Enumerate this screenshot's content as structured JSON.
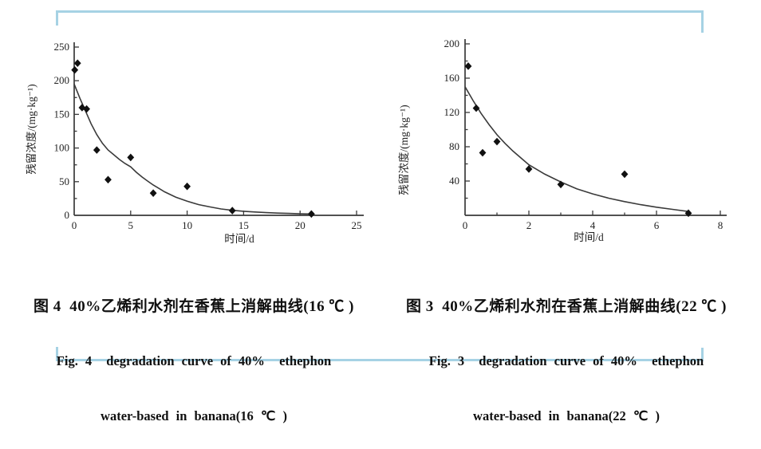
{
  "page": {
    "background": "#ffffff",
    "frame_color": "#a6d2e4",
    "ink_color": "#3a3a3a",
    "point_color": "#111111"
  },
  "chart_data": [
    {
      "figure_id": "figure-4",
      "type": "scatter",
      "title": "图 4  40%乙烯利水剂在香蕉上消解曲线(16 ℃ )",
      "caption_zh": "图 4  40%乙烯利水剂在香蕉上消解曲线(16 ℃ )",
      "caption_en1": "Fig. 4  degradation curve of 40%  ethephon",
      "caption_en2": "water-based in banana(16 ℃ )",
      "xlabel": "时间/d",
      "ylabel": "残留浓度/(mg·kg⁻¹)",
      "xlim": [
        0,
        25
      ],
      "ylim": [
        0,
        250
      ],
      "x_ticks": [
        0,
        5,
        10,
        15,
        20,
        25
      ],
      "y_ticks": [
        0,
        50,
        100,
        150,
        200,
        250
      ],
      "y_minor_step": 25,
      "x_minor_step": null,
      "grid": false,
      "legend": "none",
      "points": [
        [
          0.05,
          216
        ],
        [
          0.3,
          226
        ],
        [
          0.7,
          160
        ],
        [
          1.1,
          158
        ],
        [
          2,
          97
        ],
        [
          3,
          53
        ],
        [
          5,
          86
        ],
        [
          7,
          33
        ],
        [
          10,
          43
        ],
        [
          14,
          7
        ],
        [
          21,
          2
        ]
      ],
      "curve": [
        [
          0,
          195
        ],
        [
          0.5,
          174
        ],
        [
          1,
          155
        ],
        [
          1.5,
          136
        ],
        [
          2,
          120
        ],
        [
          2.5,
          107
        ],
        [
          3,
          97
        ],
        [
          3.5,
          90
        ],
        [
          4,
          83
        ],
        [
          4.5,
          77
        ],
        [
          5,
          72
        ],
        [
          5.5,
          64
        ],
        [
          6,
          57
        ],
        [
          6.5,
          51
        ],
        [
          7,
          45
        ],
        [
          7.5,
          40
        ],
        [
          8,
          35
        ],
        [
          9,
          27
        ],
        [
          10,
          21
        ],
        [
          11,
          16
        ],
        [
          12,
          12.5
        ],
        [
          13,
          9.5
        ],
        [
          14,
          7.5
        ],
        [
          15,
          6
        ],
        [
          16,
          5
        ],
        [
          17,
          4
        ],
        [
          18,
          3.3
        ],
        [
          19,
          2.8
        ],
        [
          20,
          2.3
        ],
        [
          21,
          2
        ]
      ]
    },
    {
      "figure_id": "figure-3",
      "type": "scatter",
      "title": "图 3  40%乙烯利水剂在香蕉上消解曲线(22 ℃ )",
      "caption_zh": "图 3  40%乙烯利水剂在香蕉上消解曲线(22 ℃ )",
      "caption_en1": "Fig. 3  degradation curve of 40%  ethephon",
      "caption_en2": "water-based in banana(22 ℃ )",
      "xlabel": "时间/d",
      "ylabel": "残留浓度/(mg·kg⁻¹)",
      "xlim": [
        0,
        8
      ],
      "ylim": [
        0,
        200
      ],
      "x_ticks": [
        0,
        2,
        4,
        6,
        8
      ],
      "y_ticks": [
        40,
        80,
        120,
        160,
        200
      ],
      "y_minor_step": 20,
      "x_minor_step": 1,
      "grid": false,
      "legend": "none",
      "points": [
        [
          0.1,
          174
        ],
        [
          0.35,
          125
        ],
        [
          0.55,
          73
        ],
        [
          1,
          86
        ],
        [
          2,
          54
        ],
        [
          3,
          36
        ],
        [
          5,
          48
        ],
        [
          7,
          2.5
        ]
      ],
      "curve": [
        [
          0,
          150
        ],
        [
          0.25,
          134
        ],
        [
          0.5,
          119
        ],
        [
          0.75,
          106
        ],
        [
          1,
          94
        ],
        [
          1.25,
          84
        ],
        [
          1.5,
          75
        ],
        [
          1.75,
          67
        ],
        [
          2,
          59
        ],
        [
          2.5,
          48
        ],
        [
          3,
          39
        ],
        [
          3.5,
          31
        ],
        [
          4,
          25
        ],
        [
          4.5,
          20
        ],
        [
          5,
          16
        ],
        [
          5.5,
          12.5
        ],
        [
          6,
          9.5
        ],
        [
          6.5,
          7
        ],
        [
          7,
          4.5
        ]
      ]
    }
  ]
}
